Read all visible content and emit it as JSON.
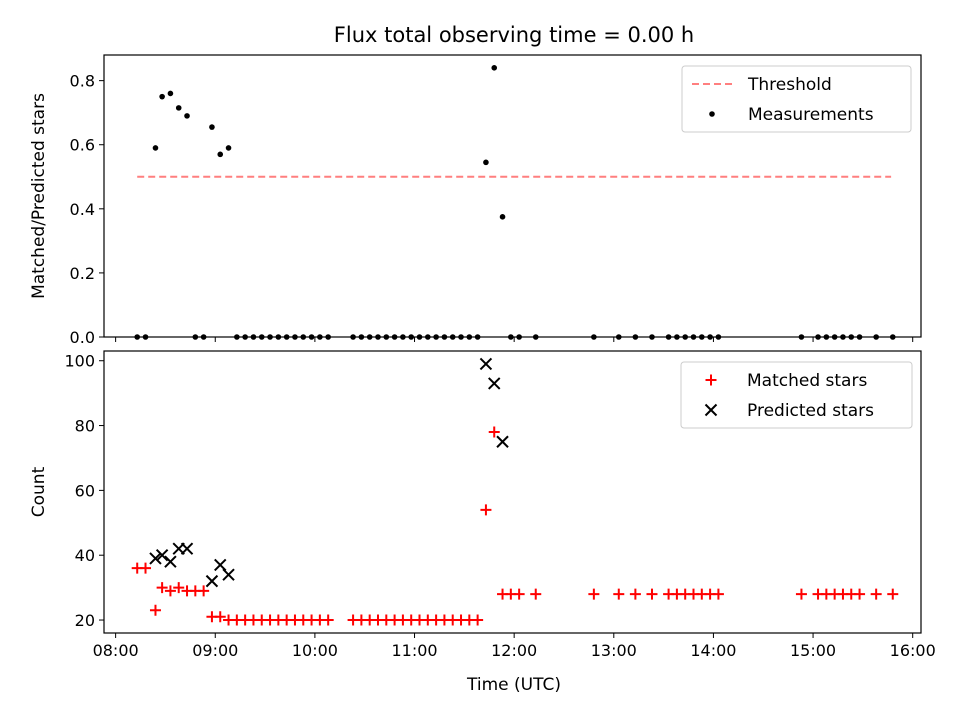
{
  "figure": {
    "title": "Flux total observing time = 0.00 h"
  },
  "colors": {
    "threshold": "#ff7f7f",
    "measurements": "#000000",
    "matched": "#ff0000",
    "predicted": "#000000"
  },
  "chart_data": [
    {
      "type": "scatter",
      "panel": "top",
      "title": "Flux total observing time = 0.00 h",
      "xlabel": "",
      "ylabel": "Matched/Predicted stars",
      "xlim": [
        "07:53",
        "16:05"
      ],
      "ylim": [
        0,
        0.88
      ],
      "yticks": [
        0.0,
        0.2,
        0.4,
        0.6,
        0.8
      ],
      "ytick_labels": [
        "0.0",
        "0.2",
        "0.4",
        "0.6",
        "0.8"
      ],
      "legend": {
        "position": "top-right",
        "entries": [
          "Threshold",
          "Measurements"
        ]
      },
      "threshold": {
        "name": "Threshold",
        "style": "dashed",
        "y": 0.5,
        "x": [
          "08:13",
          "15:47"
        ]
      },
      "series": [
        {
          "name": "Measurements",
          "marker": "dot",
          "points": [
            [
              "08:13",
              0.0
            ],
            [
              "08:18",
              0.0
            ],
            [
              "08:24",
              0.59
            ],
            [
              "08:28",
              0.75
            ],
            [
              "08:33",
              0.76
            ],
            [
              "08:38",
              0.715
            ],
            [
              "08:43",
              0.69
            ],
            [
              "08:48",
              0.0
            ],
            [
              "08:53",
              0.0
            ],
            [
              "08:58",
              0.655
            ],
            [
              "09:03",
              0.57
            ],
            [
              "09:08",
              0.59
            ],
            [
              "09:13",
              0.0
            ],
            [
              "09:18",
              0.0
            ],
            [
              "09:23",
              0.0
            ],
            [
              "09:28",
              0.0
            ],
            [
              "09:33",
              0.0
            ],
            [
              "09:38",
              0.0
            ],
            [
              "09:43",
              0.0
            ],
            [
              "09:48",
              0.0
            ],
            [
              "09:53",
              0.0
            ],
            [
              "09:58",
              0.0
            ],
            [
              "10:03",
              0.0
            ],
            [
              "10:08",
              0.0
            ],
            [
              "10:23",
              0.0
            ],
            [
              "10:28",
              0.0
            ],
            [
              "10:33",
              0.0
            ],
            [
              "10:38",
              0.0
            ],
            [
              "10:43",
              0.0
            ],
            [
              "10:48",
              0.0
            ],
            [
              "10:53",
              0.0
            ],
            [
              "10:58",
              0.0
            ],
            [
              "11:03",
              0.0
            ],
            [
              "11:08",
              0.0
            ],
            [
              "11:13",
              0.0
            ],
            [
              "11:18",
              0.0
            ],
            [
              "11:23",
              0.0
            ],
            [
              "11:28",
              0.0
            ],
            [
              "11:33",
              0.0
            ],
            [
              "11:38",
              0.0
            ],
            [
              "11:43",
              0.545
            ],
            [
              "11:48",
              0.84
            ],
            [
              "11:53",
              0.375
            ],
            [
              "11:58",
              0.0
            ],
            [
              "12:03",
              0.0
            ],
            [
              "12:13",
              0.0
            ],
            [
              "12:48",
              0.0
            ],
            [
              "13:03",
              0.0
            ],
            [
              "13:13",
              0.0
            ],
            [
              "13:23",
              0.0
            ],
            [
              "13:33",
              0.0
            ],
            [
              "13:38",
              0.0
            ],
            [
              "13:43",
              0.0
            ],
            [
              "13:48",
              0.0
            ],
            [
              "13:53",
              0.0
            ],
            [
              "13:58",
              0.0
            ],
            [
              "14:03",
              0.0
            ],
            [
              "14:53",
              0.0
            ],
            [
              "15:03",
              0.0
            ],
            [
              "15:08",
              0.0
            ],
            [
              "15:13",
              0.0
            ],
            [
              "15:18",
              0.0
            ],
            [
              "15:23",
              0.0
            ],
            [
              "15:28",
              0.0
            ],
            [
              "15:38",
              0.0
            ],
            [
              "15:48",
              0.0
            ]
          ]
        }
      ]
    },
    {
      "type": "scatter",
      "panel": "bottom",
      "title": "",
      "xlabel": "Time (UTC)",
      "ylabel": "Count",
      "xlim": [
        "07:53",
        "16:05"
      ],
      "ylim": [
        16,
        103
      ],
      "yticks": [
        20,
        40,
        60,
        80,
        100
      ],
      "ytick_labels": [
        "20",
        "40",
        "60",
        "80",
        "100"
      ],
      "xticks": [
        "08:00",
        "09:00",
        "10:00",
        "11:00",
        "12:00",
        "13:00",
        "14:00",
        "15:00",
        "16:00"
      ],
      "xtick_labels": [
        "08:00",
        "09:00",
        "10:00",
        "11:00",
        "12:00",
        "13:00",
        "14:00",
        "15:00",
        "16:00"
      ],
      "legend": {
        "position": "top-right",
        "entries": [
          "Matched stars",
          "Predicted stars"
        ]
      },
      "series": [
        {
          "name": "Matched stars",
          "marker": "plus",
          "points": [
            [
              "08:13",
              36
            ],
            [
              "08:18",
              36
            ],
            [
              "08:24",
              23
            ],
            [
              "08:28",
              30
            ],
            [
              "08:33",
              29
            ],
            [
              "08:38",
              30
            ],
            [
              "08:43",
              29
            ],
            [
              "08:48",
              29
            ],
            [
              "08:53",
              29
            ],
            [
              "08:58",
              21
            ],
            [
              "09:03",
              21
            ],
            [
              "09:08",
              20
            ],
            [
              "09:13",
              20
            ],
            [
              "09:18",
              20
            ],
            [
              "09:23",
              20
            ],
            [
              "09:28",
              20
            ],
            [
              "09:33",
              20
            ],
            [
              "09:38",
              20
            ],
            [
              "09:43",
              20
            ],
            [
              "09:48",
              20
            ],
            [
              "09:53",
              20
            ],
            [
              "09:58",
              20
            ],
            [
              "10:03",
              20
            ],
            [
              "10:08",
              20
            ],
            [
              "10:23",
              20
            ],
            [
              "10:28",
              20
            ],
            [
              "10:33",
              20
            ],
            [
              "10:38",
              20
            ],
            [
              "10:43",
              20
            ],
            [
              "10:48",
              20
            ],
            [
              "10:53",
              20
            ],
            [
              "10:58",
              20
            ],
            [
              "11:03",
              20
            ],
            [
              "11:08",
              20
            ],
            [
              "11:13",
              20
            ],
            [
              "11:18",
              20
            ],
            [
              "11:23",
              20
            ],
            [
              "11:28",
              20
            ],
            [
              "11:33",
              20
            ],
            [
              "11:38",
              20
            ],
            [
              "11:43",
              54
            ],
            [
              "11:48",
              78
            ],
            [
              "11:53",
              28
            ],
            [
              "11:58",
              28
            ],
            [
              "12:03",
              28
            ],
            [
              "12:13",
              28
            ],
            [
              "12:48",
              28
            ],
            [
              "13:03",
              28
            ],
            [
              "13:13",
              28
            ],
            [
              "13:23",
              28
            ],
            [
              "13:33",
              28
            ],
            [
              "13:38",
              28
            ],
            [
              "13:43",
              28
            ],
            [
              "13:48",
              28
            ],
            [
              "13:53",
              28
            ],
            [
              "13:58",
              28
            ],
            [
              "14:03",
              28
            ],
            [
              "14:53",
              28
            ],
            [
              "15:03",
              28
            ],
            [
              "15:08",
              28
            ],
            [
              "15:13",
              28
            ],
            [
              "15:18",
              28
            ],
            [
              "15:23",
              28
            ],
            [
              "15:28",
              28
            ],
            [
              "15:38",
              28
            ],
            [
              "15:48",
              28
            ]
          ]
        },
        {
          "name": "Predicted stars",
          "marker": "x",
          "points": [
            [
              "08:24",
              39
            ],
            [
              "08:28",
              40
            ],
            [
              "08:33",
              38
            ],
            [
              "08:38",
              42
            ],
            [
              "08:43",
              42
            ],
            [
              "08:58",
              32
            ],
            [
              "09:03",
              37
            ],
            [
              "09:08",
              34
            ],
            [
              "11:43",
              99
            ],
            [
              "11:48",
              93
            ],
            [
              "11:53",
              75
            ]
          ]
        }
      ]
    }
  ]
}
